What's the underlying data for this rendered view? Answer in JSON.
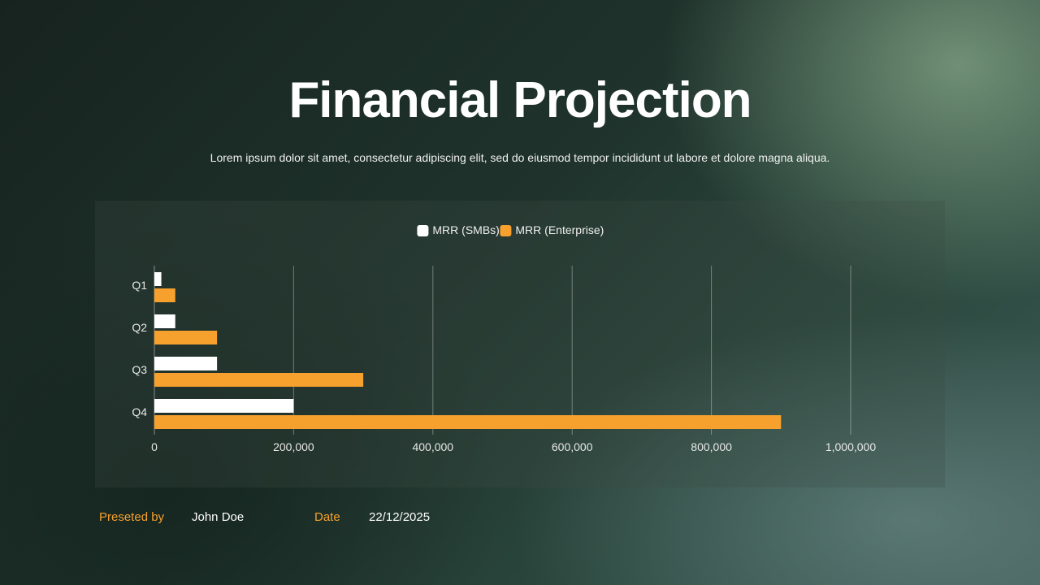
{
  "header": {
    "title": "Financial Projection",
    "subtitle": "Lorem ipsum dolor sit amet, consectetur adipiscing elit, sed do eiusmod tempor incididunt ut labore et dolore magna aliqua."
  },
  "footer": {
    "presented_by_label": "Preseted by",
    "presenter_name": "John Doe",
    "date_label": "Date",
    "date_value": "22/12/2025"
  },
  "colors": {
    "smb": "#ffffff",
    "enterprise": "#f6a12e",
    "accent": "#f6a12e"
  },
  "chart_data": {
    "type": "bar",
    "orientation": "horizontal",
    "categories": [
      "Q1",
      "Q2",
      "Q3",
      "Q4"
    ],
    "series": [
      {
        "name": "MRR (SMBs)",
        "color": "#ffffff",
        "values": [
          10000,
          30000,
          90000,
          200000
        ]
      },
      {
        "name": "MRR (Enterprise)",
        "color": "#f6a12e",
        "values": [
          30000,
          90000,
          300000,
          900000
        ]
      }
    ],
    "xlim": [
      0,
      1000000
    ],
    "xticks": [
      0,
      200000,
      400000,
      600000,
      800000,
      1000000
    ],
    "xtick_labels": [
      "0",
      "200,000",
      "400,000",
      "600,000",
      "800,000",
      "1,000,000"
    ],
    "grid": "vertical",
    "legend_position": "top-center"
  }
}
